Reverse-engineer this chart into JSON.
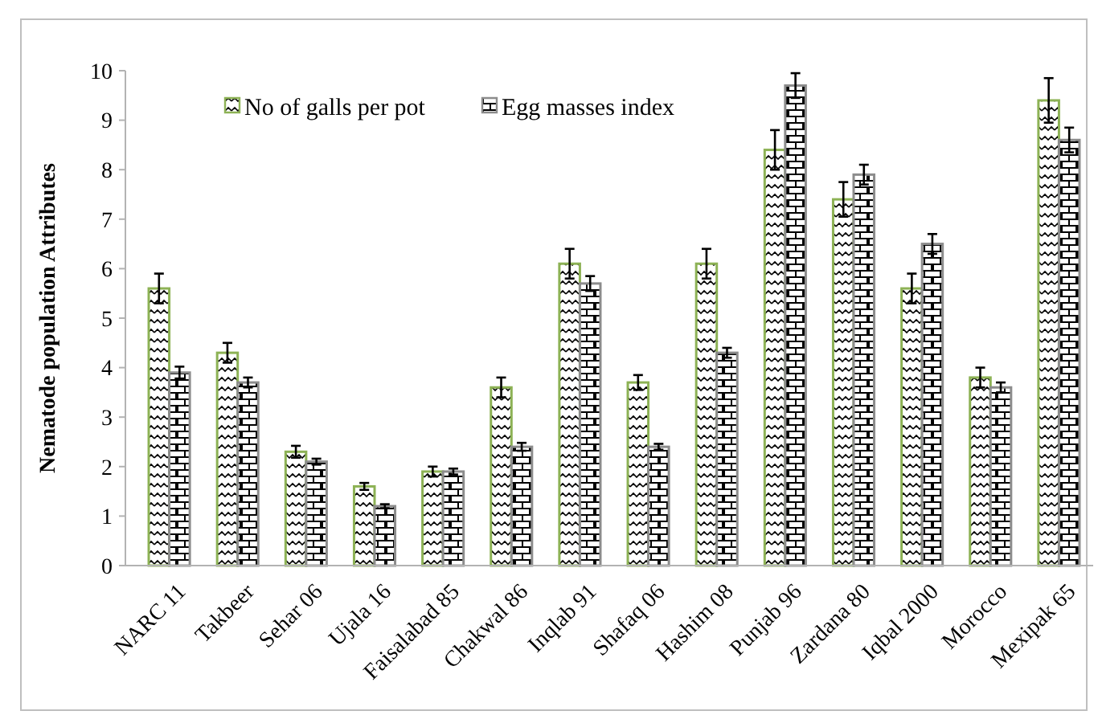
{
  "chart_data": {
    "type": "bar",
    "ylabel": "Nematode population Attributes",
    "categories": [
      "NARC 11",
      "Takbeer",
      "Sehar 06",
      "Ujala 16",
      "Faisalabad 85",
      "Chakwal 86",
      "Inqlab 91",
      "Shafaq 06",
      "Hashim 08",
      "Punjab 96",
      "Zardana 80",
      "Iqbal 2000",
      "Morocco",
      "Mexipak 65"
    ],
    "series": [
      {
        "name": "No of galls per pot",
        "color": "#8db255",
        "values": [
          5.6,
          4.3,
          2.3,
          1.6,
          1.9,
          3.6,
          6.1,
          3.7,
          6.1,
          8.4,
          7.4,
          5.6,
          3.8,
          9.4
        ],
        "errors": [
          0.3,
          0.2,
          0.12,
          0.07,
          0.1,
          0.2,
          0.3,
          0.15,
          0.3,
          0.4,
          0.35,
          0.3,
          0.2,
          0.45
        ]
      },
      {
        "name": "Egg masses index",
        "color": "#8c8c8c",
        "values": [
          3.9,
          3.7,
          2.1,
          1.2,
          1.9,
          2.4,
          5.7,
          2.4,
          4.3,
          9.7,
          7.9,
          6.5,
          3.6,
          8.6
        ],
        "errors": [
          0.12,
          0.1,
          0.06,
          0.04,
          0.06,
          0.08,
          0.15,
          0.06,
          0.1,
          0.25,
          0.2,
          0.2,
          0.1,
          0.25
        ]
      }
    ],
    "ylim": [
      0,
      10
    ],
    "yticks": [
      0,
      1,
      2,
      3,
      4,
      5,
      6,
      7,
      8,
      9,
      10
    ],
    "grid": false,
    "legend": "top left"
  }
}
